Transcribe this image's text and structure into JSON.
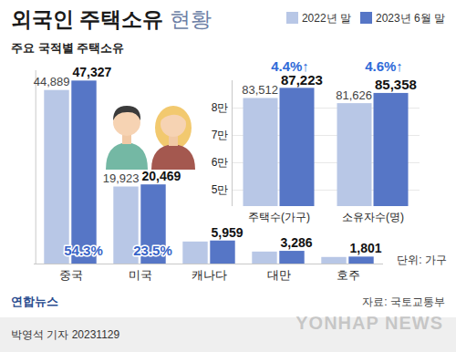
{
  "chart_data": [
    {
      "type": "bar",
      "title": "외국인 주택소유 현황",
      "subtitle": "주요 국적별 주택소유",
      "categories": [
        "중국",
        "미국",
        "캐나다",
        "대만",
        "호주"
      ],
      "series": [
        {
          "name": "2022년 말",
          "color": "#b8c7e6",
          "values": [
            44889,
            19923,
            5700,
            3100,
            1700
          ],
          "value_labels": [
            "44,889",
            "19,923",
            null,
            null,
            null
          ]
        },
        {
          "name": "2023년 6월 말",
          "color": "#5676c6",
          "values": [
            47327,
            20469,
            5959,
            3286,
            1801
          ],
          "value_labels": [
            "47,327",
            "20,469",
            "5,959",
            "3,286",
            "1,801"
          ]
        }
      ],
      "ylim": [
        0,
        50000
      ],
      "yticks": [],
      "tick_labels": "x",
      "data_labels": true,
      "legend": "top right",
      "annotations": [
        {
          "category": "중국",
          "text": "54.3%"
        },
        {
          "category": "미국",
          "text": "23.5%"
        }
      ],
      "unit": "단위: 가구"
    },
    {
      "type": "bar",
      "categories": [
        "주택수(가구)",
        "소유자수(명)"
      ],
      "series": [
        {
          "name": "2022년 말",
          "color": "#b8c7e6",
          "values": [
            83512,
            81626
          ],
          "value_labels": [
            "83,512",
            "81,626"
          ]
        },
        {
          "name": "2023년 6월 말",
          "color": "#5676c6",
          "values": [
            87223,
            85358
          ],
          "value_labels": [
            "87,223",
            "85,358"
          ]
        }
      ],
      "ylim": [
        44000,
        90000
      ],
      "yticks": [
        {
          "value": 50000,
          "label": "5만"
        },
        {
          "value": 60000,
          "label": "6만"
        },
        {
          "value": 70000,
          "label": "7만"
        },
        {
          "value": 80000,
          "label": "8만"
        }
      ],
      "grid": true,
      "tick_labels": true,
      "data_labels": true,
      "annotations": [
        {
          "category": "주택수(가구)",
          "text": "4.4%↑"
        },
        {
          "category": "소유자수(명)",
          "text": "4.6%↑"
        }
      ]
    }
  ],
  "publisher": "연합뉴스",
  "source": "자료: 국토교통부",
  "credit": "박영석 기자",
  "date": "20231129",
  "watermark": "YONHAP NEWS"
}
